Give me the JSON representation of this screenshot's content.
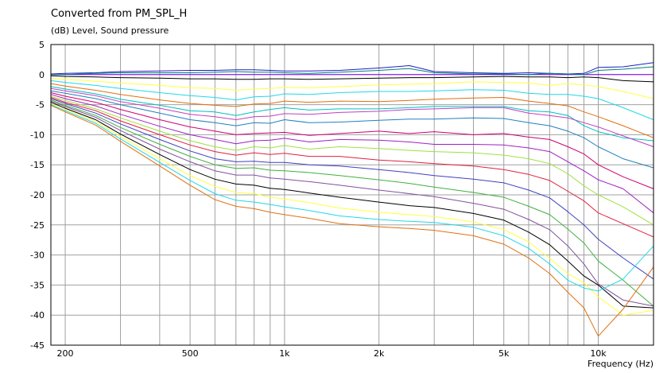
{
  "chart_data": {
    "type": "line",
    "title": "Converted from PM_SPL_H",
    "ylabel": "(dB)  Level, Sound pressure",
    "xlabel": "Frequency  (Hz)",
    "x_scale": "log",
    "xlim": [
      180,
      15000
    ],
    "ylim": [
      -45,
      5
    ],
    "grid": true,
    "x_ticks": [
      {
        "value": 200,
        "label": "200"
      },
      {
        "value": 500,
        "label": "500"
      },
      {
        "value": 1000,
        "label": "1k"
      },
      {
        "value": 2000,
        "label": "2k"
      },
      {
        "value": 5000,
        "label": "5k"
      },
      {
        "value": 10000,
        "label": "10k"
      }
    ],
    "y_ticks": [
      5,
      0,
      -5,
      -10,
      -15,
      -20,
      -25,
      -30,
      -35,
      -40,
      -45
    ],
    "x": [
      180,
      200,
      250,
      300,
      400,
      500,
      600,
      700,
      800,
      900,
      1000,
      1200,
      1500,
      2000,
      2500,
      3000,
      4000,
      5000,
      6000,
      7000,
      8000,
      9000,
      10000,
      12000,
      15000
    ],
    "series": [
      {
        "color": "#8000ff",
        "values": [
          0,
          0,
          0,
          0,
          0,
          0,
          0,
          0,
          0,
          0,
          0,
          0,
          0,
          0,
          0,
          0,
          0,
          0,
          0,
          0,
          0,
          0,
          0,
          0,
          0
        ]
      },
      {
        "color": "#2020c0",
        "values": [
          0.1,
          0.2,
          0.3,
          0.5,
          0.6,
          0.7,
          0.7,
          0.8,
          0.8,
          0.7,
          0.6,
          0.6,
          0.7,
          1.1,
          1.5,
          0.5,
          0.3,
          0.2,
          0.3,
          0.2,
          0.1,
          0.2,
          1.2,
          1.3,
          2
        ]
      },
      {
        "color": "#008080",
        "values": [
          0,
          0,
          0.2,
          0.3,
          0.3,
          0.3,
          0.4,
          0.5,
          0.4,
          0.4,
          0.3,
          0.2,
          0.4,
          0.7,
          1,
          0.3,
          0.1,
          0.1,
          0,
          0.2,
          0.1,
          0,
          0.7,
          0.9,
          1.3
        ]
      },
      {
        "color": "#000000",
        "values": [
          -0.2,
          -0.3,
          -0.4,
          -0.5,
          -0.6,
          -0.7,
          -0.7,
          -0.8,
          -0.8,
          -0.7,
          -0.7,
          -0.8,
          -0.7,
          -0.6,
          -0.5,
          -0.5,
          -0.4,
          -0.3,
          -0.4,
          -0.4,
          -0.5,
          -0.4,
          -0.5,
          -1,
          -1.2
        ]
      },
      {
        "color": "#ffff40",
        "values": [
          -0.6,
          -0.8,
          -1.1,
          -1.4,
          -1.8,
          -2.2,
          -2.3,
          -2.6,
          -2.4,
          -2.3,
          -2.1,
          -2.2,
          -2.0,
          -1.7,
          -1.6,
          -1.5,
          -1.2,
          -1.3,
          -1.4,
          -1.8,
          -1.5,
          -1.7,
          -2,
          -2.8,
          -4
        ]
      },
      {
        "color": "#20d8e8",
        "values": [
          -1,
          -1.3,
          -1.8,
          -2.3,
          -3,
          -3.5,
          -3.8,
          -4.2,
          -3.7,
          -3.6,
          -3.2,
          -3.3,
          -3,
          -2.8,
          -2.8,
          -2.7,
          -2.5,
          -2.6,
          -3.1,
          -3.3,
          -3.3,
          -3.6,
          -4,
          -5.5,
          -7.5
        ]
      },
      {
        "color": "#e07010",
        "values": [
          -1.5,
          -1.9,
          -2.6,
          -3.3,
          -4.2,
          -4.8,
          -5.1,
          -5.3,
          -4.9,
          -4.8,
          -4.4,
          -4.6,
          -4.4,
          -4.5,
          -4.3,
          -4.1,
          -3.9,
          -3.8,
          -4.4,
          -4.8,
          -5.2,
          -6.2,
          -7,
          -8.5,
          -10.5
        ]
      },
      {
        "color": "#00c0c0",
        "values": [
          -2,
          -2.4,
          -3.2,
          -4.1,
          -5.1,
          -6,
          -6.2,
          -6.8,
          -6.2,
          -5.8,
          -5.5,
          -5.9,
          -5.7,
          -5.7,
          -5.5,
          -5.3,
          -5.3,
          -5.3,
          -6,
          -6.2,
          -6.8,
          -8.5,
          -9.5,
          -10.5,
          -11
        ]
      },
      {
        "color": "#c040c0",
        "values": [
          -2.3,
          -2.7,
          -3.5,
          -4.5,
          -5.6,
          -6.6,
          -7,
          -7.5,
          -7,
          -6.9,
          -6.5,
          -6.6,
          -6.3,
          -6.1,
          -5.8,
          -5.7,
          -5.5,
          -5.5,
          -6.4,
          -6.8,
          -7.2,
          -8,
          -8.7,
          -10.2,
          -12
        ]
      },
      {
        "color": "#2080c0",
        "values": [
          -2.7,
          -3.1,
          -4,
          -5,
          -6.4,
          -7.5,
          -8,
          -8.5,
          -8,
          -8.1,
          -7.5,
          -8,
          -7.9,
          -7.6,
          -7.4,
          -7.4,
          -7.2,
          -7.3,
          -8,
          -8.5,
          -9.4,
          -10.5,
          -12,
          -14,
          -15.5
        ]
      },
      {
        "color": "#d00070",
        "values": [
          -3,
          -3.6,
          -4.6,
          -5.8,
          -7.5,
          -8.7,
          -9.4,
          -10,
          -9.8,
          -9.7,
          -9.6,
          -10.1,
          -9.8,
          -9.4,
          -9.8,
          -9.5,
          -10,
          -9.8,
          -10.4,
          -10.8,
          -12,
          -13.2,
          -15,
          -17,
          -19
        ]
      },
      {
        "color": "#a020c0",
        "values": [
          -3.3,
          -4,
          -5.2,
          -6.6,
          -8.6,
          -10,
          -10.8,
          -11.5,
          -11,
          -10.9,
          -10.6,
          -11.2,
          -10.8,
          -10.9,
          -11.2,
          -11.6,
          -11.6,
          -11.7,
          -12.2,
          -12.8,
          -14.5,
          -16,
          -17.5,
          -19,
          -23
        ]
      },
      {
        "color": "#a0e040",
        "values": [
          -3.6,
          -4.3,
          -5.7,
          -7.2,
          -9.4,
          -11,
          -12,
          -12.6,
          -12,
          -12.2,
          -11.8,
          -12.4,
          -12,
          -12.3,
          -12.6,
          -12.8,
          -13,
          -13.4,
          -14,
          -14.8,
          -16.5,
          -18.5,
          -20,
          -22,
          -25
        ]
      },
      {
        "color": "#e02040",
        "values": [
          -3.8,
          -4.6,
          -6,
          -7.7,
          -10,
          -11.7,
          -12.8,
          -13.4,
          -13,
          -13.3,
          -13.1,
          -13.6,
          -13.6,
          -14.2,
          -14.5,
          -14.8,
          -15.2,
          -15.8,
          -16.6,
          -17.6,
          -19.4,
          -21,
          -23,
          -24.8,
          -27
        ]
      },
      {
        "color": "#4040c0",
        "values": [
          -4,
          -4.8,
          -6.4,
          -8.2,
          -10.8,
          -12.7,
          -14,
          -14.5,
          -14.4,
          -14.6,
          -14.6,
          -15,
          -15.2,
          -15.8,
          -16.3,
          -16.8,
          -17.4,
          -18,
          -19.2,
          -20.5,
          -22.8,
          -25,
          -27.4,
          -30.5,
          -34
        ]
      },
      {
        "color": "#40b040",
        "values": [
          -4.2,
          -5.1,
          -6.8,
          -8.8,
          -11.6,
          -13.6,
          -15,
          -15.6,
          -15.5,
          -15.9,
          -16,
          -16.3,
          -16.8,
          -17.5,
          -18.1,
          -18.7,
          -19.6,
          -20.4,
          -21.9,
          -23.3,
          -25.7,
          -28,
          -31,
          -34.2,
          -38.5
        ]
      },
      {
        "color": "#8050a0",
        "values": [
          -4.4,
          -5.3,
          -7.1,
          -9.3,
          -12.4,
          -14.5,
          -16,
          -16.7,
          -16.7,
          -17.2,
          -17.4,
          -17.8,
          -18.4,
          -19.2,
          -19.8,
          -20.3,
          -21.4,
          -22.4,
          -24.1,
          -25.8,
          -28.5,
          -31.5,
          -34.8,
          -37.5,
          -38.5
        ]
      },
      {
        "color": "#000000",
        "values": [
          -4.6,
          -5.6,
          -7.5,
          -9.9,
          -13.3,
          -15.8,
          -17.4,
          -18.2,
          -18.4,
          -18.9,
          -19.1,
          -19.7,
          -20.4,
          -21.2,
          -21.8,
          -22.1,
          -23.1,
          -24.2,
          -26.2,
          -28.3,
          -31,
          -33.5,
          -35,
          -38.5,
          -38.8
        ]
      },
      {
        "color": "#ffff40",
        "values": [
          -4.8,
          -5.8,
          -7.8,
          -10.3,
          -14,
          -16.8,
          -18.6,
          -19.6,
          -19.8,
          -20.4,
          -20.7,
          -21.3,
          -22.2,
          -22.9,
          -23.3,
          -23.6,
          -24.5,
          -25.8,
          -27.8,
          -30.6,
          -33.1,
          -34.6,
          -37,
          -40,
          -39.2
        ]
      },
      {
        "color": "#20d8e8",
        "values": [
          -5,
          -6,
          -8.1,
          -10.7,
          -14.6,
          -17.6,
          -19.8,
          -20.9,
          -21.2,
          -21.6,
          -22,
          -22.6,
          -23.5,
          -24.1,
          -24.4,
          -24.6,
          -25.4,
          -26.8,
          -28.9,
          -31.5,
          -34.2,
          -35.5,
          -36,
          -34,
          -28.5
        ]
      },
      {
        "color": "#e07010",
        "values": [
          -5.1,
          -6.2,
          -8.4,
          -11.1,
          -15.2,
          -18.4,
          -20.8,
          -21.9,
          -22.3,
          -22.9,
          -23.3,
          -23.9,
          -24.8,
          -25.3,
          -25.6,
          -25.9,
          -26.8,
          -28.2,
          -30.5,
          -33.1,
          -36.2,
          -38.8,
          -43.5,
          -39,
          -32
        ]
      }
    ]
  }
}
